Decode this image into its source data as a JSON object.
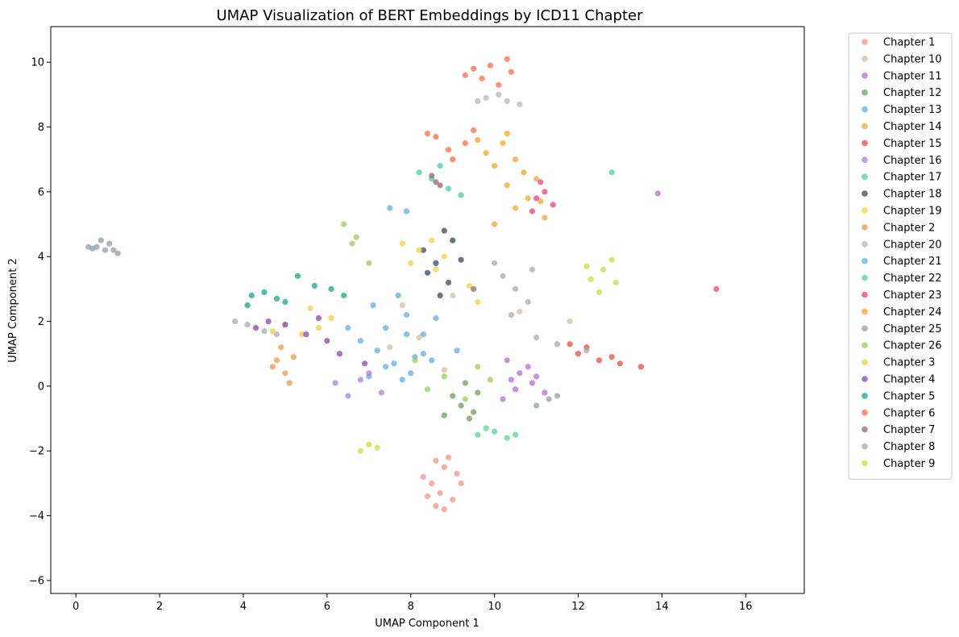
{
  "chart_data": {
    "type": "scatter",
    "title": "UMAP Visualization of BERT Embeddings by ICD11 Chapter",
    "xlabel": "UMAP Component 1",
    "ylabel": "UMAP Component 2",
    "xlim": [
      -0.6,
      17.4
    ],
    "ylim": [
      -6.4,
      11.1
    ],
    "xticks": [
      0,
      2,
      4,
      6,
      8,
      10,
      12,
      14,
      16
    ],
    "yticks": [
      -6,
      -4,
      -2,
      0,
      2,
      4,
      6,
      8,
      10
    ],
    "xtick_labels": [
      "0",
      "2",
      "4",
      "6",
      "8",
      "10",
      "12",
      "14",
      "16"
    ],
    "ytick_labels": [
      "−6",
      "−4",
      "−2",
      "0",
      "2",
      "4",
      "6",
      "8",
      "10"
    ],
    "grid": false,
    "legend_position": "outside-right",
    "series": [
      {
        "name": "Chapter 1",
        "color": "#F1948A",
        "points": [
          [
            8.5,
            -3.0
          ],
          [
            8.7,
            -3.3
          ],
          [
            8.8,
            -2.5
          ],
          [
            8.3,
            -2.8
          ],
          [
            9.0,
            -3.5
          ],
          [
            8.6,
            -3.7
          ],
          [
            9.2,
            -3.0
          ],
          [
            8.9,
            -2.2
          ],
          [
            8.4,
            -3.4
          ],
          [
            9.1,
            -2.7
          ],
          [
            8.6,
            -2.3
          ],
          [
            8.8,
            -3.8
          ]
        ]
      },
      {
        "name": "Chapter 10",
        "color": "#D7BDA0",
        "points": [
          [
            7.5,
            1.2
          ],
          [
            8.2,
            1.5
          ],
          [
            9.0,
            2.8
          ],
          [
            10.6,
            2.3
          ],
          [
            11.8,
            2.0
          ],
          [
            8.8,
            0.5
          ],
          [
            7.8,
            2.5
          ]
        ]
      },
      {
        "name": "Chapter 11",
        "color": "#BB6BD9",
        "points": [
          [
            10.4,
            0.2
          ],
          [
            10.6,
            0.4
          ],
          [
            10.9,
            0.1
          ],
          [
            11.2,
            -0.2
          ],
          [
            10.2,
            -0.4
          ],
          [
            10.5,
            -0.1
          ],
          [
            10.8,
            0.6
          ],
          [
            11.0,
            0.3
          ],
          [
            10.3,
            0.8
          ],
          [
            13.9,
            5.95
          ]
        ]
      },
      {
        "name": "Chapter 12",
        "color": "#6E9E5A",
        "points": [
          [
            9.2,
            -0.6
          ],
          [
            9.4,
            -1.0
          ],
          [
            9.0,
            -0.3
          ],
          [
            9.5,
            -0.8
          ],
          [
            8.8,
            -0.9
          ],
          [
            9.6,
            -0.2
          ],
          [
            9.3,
            0.1
          ]
        ]
      },
      {
        "name": "Chapter 13",
        "color": "#5DADE2",
        "points": [
          [
            7.6,
            0.7
          ],
          [
            8.0,
            0.4
          ],
          [
            7.2,
            1.1
          ],
          [
            8.3,
            1.0
          ],
          [
            7.8,
            0.2
          ],
          [
            6.8,
            1.4
          ],
          [
            7.4,
            0.6
          ],
          [
            8.5,
            0.8
          ],
          [
            7.0,
            0.3
          ],
          [
            6.5,
            1.8
          ],
          [
            7.9,
            1.6
          ]
        ]
      },
      {
        "name": "Chapter 14",
        "color": "#F0A830",
        "points": [
          [
            10.3,
            6.2
          ],
          [
            10.8,
            5.8
          ],
          [
            11.0,
            6.4
          ],
          [
            10.5,
            5.5
          ],
          [
            11.2,
            5.2
          ],
          [
            10.0,
            5.0
          ],
          [
            10.7,
            6.6
          ],
          [
            11.1,
            5.7
          ]
        ]
      },
      {
        "name": "Chapter 15",
        "color": "#E74C3C",
        "points": [
          [
            12.0,
            1.0
          ],
          [
            12.5,
            0.8
          ],
          [
            13.0,
            0.7
          ],
          [
            12.2,
            1.2
          ],
          [
            13.5,
            0.6
          ],
          [
            12.8,
            0.9
          ],
          [
            11.8,
            1.3
          ]
        ]
      },
      {
        "name": "Chapter 16",
        "color": "#B07CD8",
        "points": [
          [
            6.8,
            0.2
          ],
          [
            6.5,
            -0.3
          ],
          [
            7.0,
            0.4
          ],
          [
            6.2,
            0.1
          ],
          [
            7.3,
            -0.2
          ]
        ]
      },
      {
        "name": "Chapter 17",
        "color": "#48C9B0",
        "points": [
          [
            8.5,
            6.4
          ],
          [
            8.9,
            6.1
          ],
          [
            8.2,
            6.6
          ],
          [
            9.2,
            5.9
          ],
          [
            8.7,
            6.8
          ],
          [
            12.8,
            6.6
          ]
        ]
      },
      {
        "name": "Chapter 18",
        "color": "#34495E",
        "points": [
          [
            8.6,
            3.8
          ],
          [
            8.9,
            3.2
          ],
          [
            8.3,
            4.2
          ],
          [
            9.0,
            4.5
          ],
          [
            8.7,
            2.8
          ],
          [
            8.4,
            3.5
          ],
          [
            9.2,
            3.9
          ],
          [
            8.8,
            4.8
          ]
        ]
      },
      {
        "name": "Chapter 19",
        "color": "#F4D03F",
        "points": [
          [
            8.2,
            4.2
          ],
          [
            8.5,
            4.5
          ],
          [
            8.0,
            3.8
          ],
          [
            8.8,
            4.0
          ],
          [
            7.8,
            4.4
          ],
          [
            8.6,
            3.6
          ],
          [
            9.4,
            3.1
          ],
          [
            9.6,
            2.6
          ]
        ]
      },
      {
        "name": "Chapter 2",
        "color": "#E59A4F",
        "points": [
          [
            4.8,
            0.8
          ],
          [
            5.0,
            0.4
          ],
          [
            4.9,
            1.2
          ],
          [
            5.1,
            0.1
          ],
          [
            4.7,
            0.6
          ],
          [
            5.2,
            0.9
          ]
        ]
      },
      {
        "name": "Chapter 20",
        "color": "#B3B6B7",
        "points": [
          [
            9.8,
            8.9
          ],
          [
            10.3,
            8.8
          ],
          [
            10.6,
            8.7
          ],
          [
            10.1,
            9.0
          ],
          [
            9.6,
            8.8
          ]
        ]
      },
      {
        "name": "Chapter 21",
        "color": "#5DADE2",
        "points": [
          [
            7.4,
            1.8
          ],
          [
            7.9,
            2.2
          ],
          [
            8.3,
            1.6
          ],
          [
            7.1,
            2.5
          ],
          [
            8.6,
            2.1
          ],
          [
            7.7,
            2.8
          ],
          [
            8.1,
            0.9
          ],
          [
            9.1,
            1.1
          ],
          [
            7.5,
            5.5
          ],
          [
            7.9,
            5.4
          ]
        ]
      },
      {
        "name": "Chapter 22",
        "color": "#58D68D",
        "points": [
          [
            9.6,
            -1.5
          ],
          [
            10.0,
            -1.4
          ],
          [
            10.3,
            -1.6
          ],
          [
            9.8,
            -1.3
          ],
          [
            10.5,
            -1.5
          ]
        ]
      },
      {
        "name": "Chapter 23",
        "color": "#E9417B",
        "points": [
          [
            11.0,
            5.8
          ],
          [
            11.2,
            6.0
          ],
          [
            11.4,
            5.6
          ],
          [
            11.1,
            6.3
          ],
          [
            10.9,
            5.4
          ],
          [
            15.3,
            3.0
          ]
        ]
      },
      {
        "name": "Chapter 24",
        "color": "#F5A623",
        "points": [
          [
            9.8,
            7.2
          ],
          [
            10.2,
            7.5
          ],
          [
            10.5,
            7.0
          ],
          [
            10.0,
            6.8
          ],
          [
            10.3,
            7.8
          ],
          [
            9.6,
            7.6
          ]
        ]
      },
      {
        "name": "Chapter 25",
        "color": "#8E9FA8",
        "points": [
          [
            0.5,
            4.3
          ],
          [
            0.7,
            4.2
          ],
          [
            0.8,
            4.4
          ],
          [
            0.4,
            4.25
          ],
          [
            1.0,
            4.1
          ],
          [
            0.6,
            4.5
          ],
          [
            0.9,
            4.2
          ],
          [
            0.3,
            4.3
          ],
          [
            11.3,
            -0.4
          ],
          [
            11.0,
            -0.6
          ],
          [
            11.5,
            -0.3
          ]
        ]
      },
      {
        "name": "Chapter 26",
        "color": "#9ACD5A",
        "points": [
          [
            8.8,
            0.3
          ],
          [
            9.3,
            -0.4
          ],
          [
            8.4,
            -0.1
          ],
          [
            9.6,
            0.6
          ],
          [
            8.1,
            0.8
          ],
          [
            9.9,
            0.2
          ],
          [
            6.4,
            5.0
          ],
          [
            6.7,
            4.6
          ],
          [
            7.0,
            3.8
          ],
          [
            6.6,
            4.4
          ]
        ]
      },
      {
        "name": "Chapter 3",
        "color": "#F7C948",
        "points": [
          [
            4.7,
            1.7
          ],
          [
            5.0,
            1.9
          ],
          [
            5.4,
            1.6
          ],
          [
            5.8,
            1.8
          ],
          [
            6.1,
            2.1
          ],
          [
            5.6,
            2.4
          ]
        ]
      },
      {
        "name": "Chapter 4",
        "color": "#8E44AD",
        "points": [
          [
            5.0,
            1.9
          ],
          [
            5.5,
            1.6
          ],
          [
            4.6,
            2.0
          ],
          [
            6.0,
            1.4
          ],
          [
            5.8,
            2.1
          ],
          [
            4.3,
            1.8
          ],
          [
            6.3,
            1.0
          ],
          [
            6.9,
            0.7
          ]
        ]
      },
      {
        "name": "Chapter 5",
        "color": "#17A589",
        "points": [
          [
            4.2,
            2.8
          ],
          [
            4.5,
            2.9
          ],
          [
            4.8,
            2.7
          ],
          [
            5.3,
            3.4
          ],
          [
            5.7,
            3.1
          ],
          [
            4.1,
            2.5
          ],
          [
            5.0,
            2.6
          ],
          [
            6.1,
            3.0
          ],
          [
            6.4,
            2.8
          ]
        ]
      },
      {
        "name": "Chapter 6",
        "color": "#FF6B45",
        "points": [
          [
            9.5,
            9.8
          ],
          [
            9.9,
            9.9
          ],
          [
            10.3,
            10.1
          ],
          [
            9.7,
            9.5
          ],
          [
            10.1,
            9.3
          ],
          [
            10.4,
            9.7
          ],
          [
            9.3,
            9.6
          ],
          [
            8.6,
            7.7
          ],
          [
            8.9,
            7.3
          ],
          [
            9.3,
            7.5
          ],
          [
            8.4,
            7.8
          ],
          [
            9.0,
            7.0
          ],
          [
            9.5,
            7.9
          ]
        ]
      },
      {
        "name": "Chapter 7",
        "color": "#8D6E63",
        "points": [
          [
            8.6,
            6.3
          ],
          [
            8.5,
            6.5
          ],
          [
            8.7,
            6.2
          ],
          [
            9.5,
            3.0
          ]
        ]
      },
      {
        "name": "Chapter 8",
        "color": "#A6ACAF",
        "points": [
          [
            10.2,
            3.4
          ],
          [
            10.5,
            3.0
          ],
          [
            10.8,
            2.6
          ],
          [
            10.4,
            2.2
          ],
          [
            10.0,
            3.8
          ],
          [
            10.9,
            3.6
          ],
          [
            4.1,
            1.9
          ],
          [
            4.5,
            1.7
          ],
          [
            3.8,
            2.0
          ],
          [
            4.8,
            1.6
          ],
          [
            11.0,
            1.5
          ],
          [
            11.5,
            1.3
          ],
          [
            12.2,
            1.1
          ]
        ]
      },
      {
        "name": "Chapter 9",
        "color": "#CDDC39",
        "points": [
          [
            12.3,
            3.3
          ],
          [
            12.6,
            3.6
          ],
          [
            12.9,
            3.2
          ],
          [
            12.5,
            2.9
          ],
          [
            12.8,
            3.9
          ],
          [
            12.2,
            3.7
          ],
          [
            7.0,
            -1.8
          ],
          [
            6.8,
            -2.0
          ],
          [
            7.2,
            -1.9
          ]
        ]
      }
    ]
  }
}
